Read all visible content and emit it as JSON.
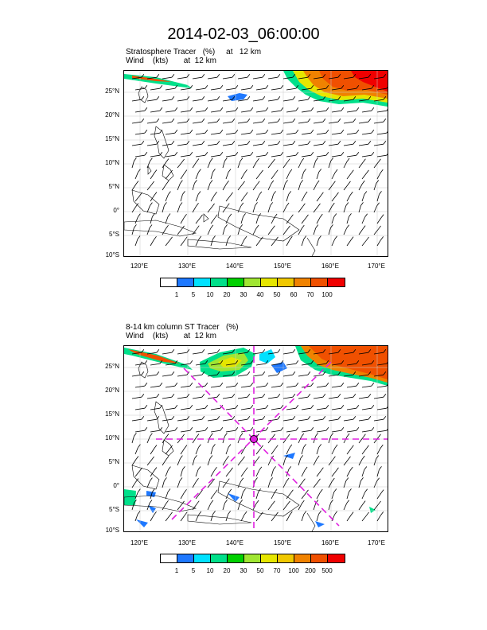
{
  "title": "2014-02-03_06:00:00",
  "panel1": {
    "line1": "Stratosphere Tracer   (%)     at   12 km",
    "line2": "Wind    (kts)       at  12 km",
    "lat_labels": [
      "25°N",
      "20°N",
      "15°N",
      "10°N",
      "5°N",
      "0°",
      "5°S",
      "10°S"
    ],
    "lon_labels": [
      "120°E",
      "130°E",
      "140°E",
      "150°E",
      "160°E",
      "170°E"
    ],
    "colorbar_labels": [
      "1",
      "5",
      "10",
      "20",
      "30",
      "40",
      "50",
      "60",
      "70",
      "100"
    ],
    "colorbar_colors": [
      "#ffffff",
      "#1e78ff",
      "#00e1ff",
      "#00e08a",
      "#00d000",
      "#a0e632",
      "#e6e600",
      "#f0c800",
      "#f08200",
      "#f05000",
      "#f00000"
    ]
  },
  "panel2": {
    "line1": "8-14 km column ST Tracer   (%)",
    "line2": "Wind    (kts)       at  12 km",
    "lat_labels": [
      "25°N",
      "20°N",
      "15°N",
      "10°N",
      "5°N",
      "0°",
      "5°S",
      "10°S"
    ],
    "lon_labels": [
      "120°E",
      "130°E",
      "140°E",
      "150°E",
      "160°E",
      "170°E"
    ],
    "colorbar_labels": [
      "1",
      "5",
      "10",
      "20",
      "30",
      "50",
      "70",
      "100",
      "200",
      "500"
    ],
    "colorbar_colors": [
      "#ffffff",
      "#1e78ff",
      "#00e1ff",
      "#00e08a",
      "#00d000",
      "#a0e632",
      "#e6e600",
      "#f0c800",
      "#f08200",
      "#f05000",
      "#f00000"
    ]
  },
  "marker_color": "#e020e0"
}
